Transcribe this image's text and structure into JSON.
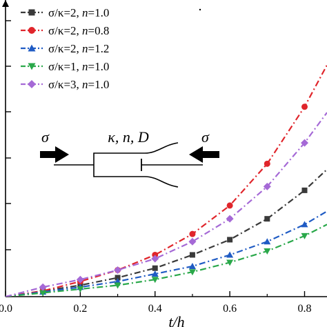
{
  "chart_data": {
    "type": "line",
    "xlabel": "t/h",
    "ylabel": "",
    "title": "",
    "xlim": [
      0.0,
      0.86
    ],
    "ylim": [
      0.0,
      1.0
    ],
    "x_ticks": [
      "0.0",
      "0.2",
      "0.4",
      "0.6",
      "0.8"
    ],
    "x_tick_values": [
      0.0,
      0.2,
      0.4,
      0.6,
      0.8
    ],
    "grid": false,
    "legend_position": "top-left",
    "series": [
      {
        "name_prefix": "σ/κ=2, ",
        "name_var": "n",
        "name_value": "=1.0",
        "color": "#3a3a3a",
        "marker": "square",
        "x": [
          0.0,
          0.1,
          0.2,
          0.3,
          0.4,
          0.5,
          0.6,
          0.7,
          0.8,
          0.86
        ],
        "y": [
          0.0,
          0.03,
          0.06,
          0.1,
          0.15,
          0.22,
          0.3,
          0.41,
          0.56,
          0.67
        ]
      },
      {
        "name_prefix": "σ/κ=2, ",
        "name_var": "n",
        "name_value": "=0.8",
        "color": "#e0252b",
        "marker": "circle",
        "x": [
          0.0,
          0.1,
          0.2,
          0.3,
          0.4,
          0.5,
          0.6,
          0.7,
          0.8,
          0.86
        ],
        "y": [
          0.0,
          0.03,
          0.08,
          0.14,
          0.22,
          0.33,
          0.48,
          0.7,
          1.0,
          1.22
        ]
      },
      {
        "name_prefix": "σ/κ=2, ",
        "name_var": "n",
        "name_value": "=1.2",
        "color": "#1f5bc4",
        "marker": "triangle-up",
        "x": [
          0.0,
          0.1,
          0.2,
          0.3,
          0.4,
          0.5,
          0.6,
          0.7,
          0.8,
          0.86
        ],
        "y": [
          0.0,
          0.025,
          0.05,
          0.08,
          0.12,
          0.16,
          0.22,
          0.29,
          0.38,
          0.45
        ]
      },
      {
        "name_prefix": "σ/κ=1, ",
        "name_var": "n",
        "name_value": "=1.0",
        "color": "#2aa84a",
        "marker": "triangle-down",
        "x": [
          0.0,
          0.1,
          0.2,
          0.3,
          0.4,
          0.5,
          0.6,
          0.7,
          0.8,
          0.86
        ],
        "y": [
          0.0,
          0.02,
          0.04,
          0.06,
          0.09,
          0.13,
          0.18,
          0.24,
          0.32,
          0.38
        ]
      },
      {
        "name_prefix": "σ/κ=3, ",
        "name_var": "n",
        "name_value": "=1.0",
        "color": "#a569d6",
        "marker": "diamond",
        "x": [
          0.0,
          0.1,
          0.2,
          0.3,
          0.4,
          0.5,
          0.6,
          0.7,
          0.8,
          0.86
        ],
        "y": [
          0.0,
          0.05,
          0.09,
          0.14,
          0.2,
          0.29,
          0.41,
          0.58,
          0.81,
          0.97
        ]
      }
    ]
  },
  "schematic": {
    "sigma_left": "σ",
    "sigma_right": "σ",
    "params": "κ, n, D"
  }
}
